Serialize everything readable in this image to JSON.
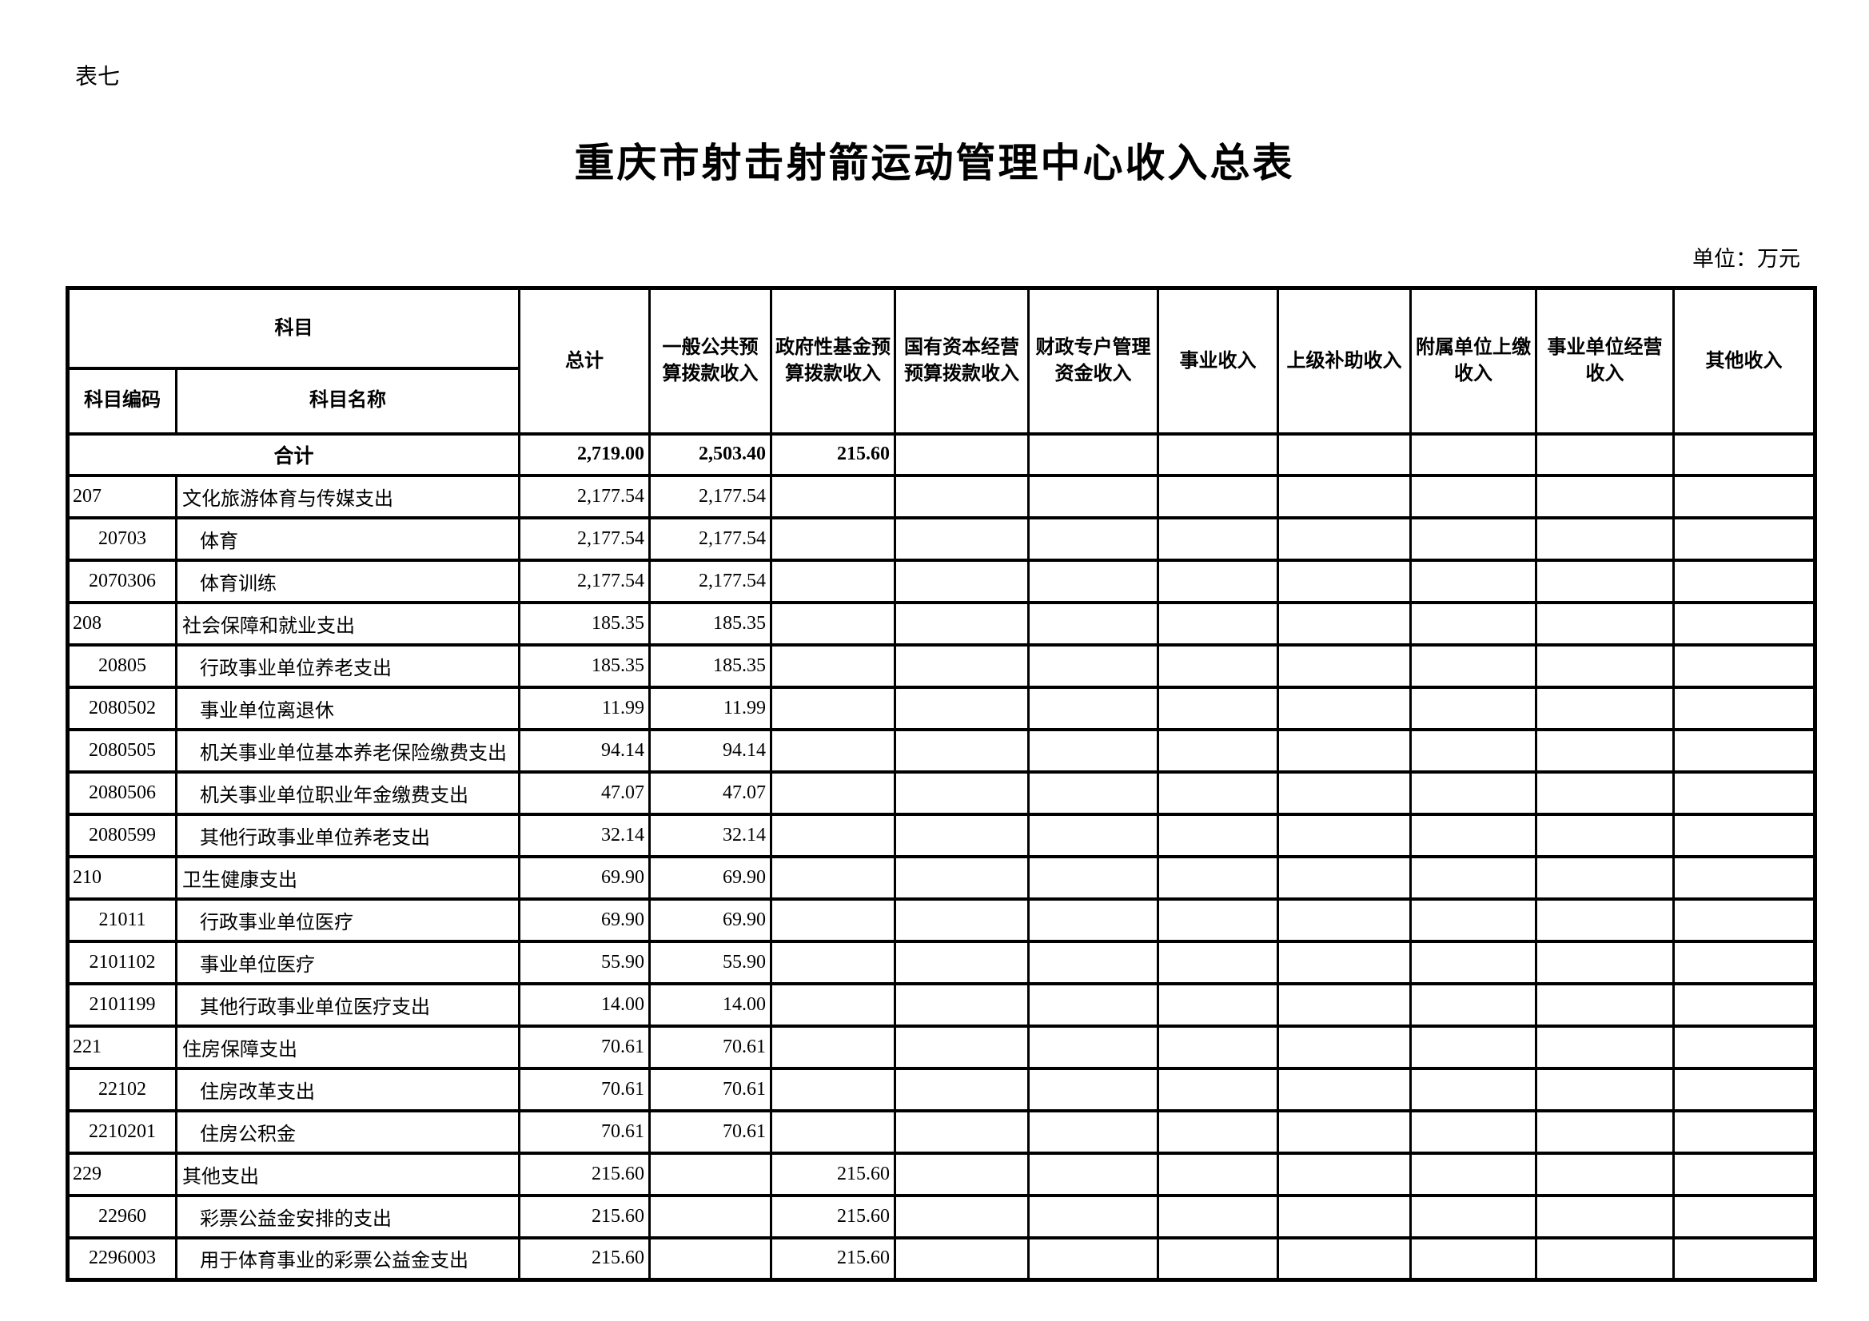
{
  "page": {
    "table_label": "表七",
    "title": "重庆市射击射箭运动管理中心收入总表",
    "unit_note": "单位：万元"
  },
  "table": {
    "header": {
      "subject_group": "科目",
      "subject_code": "科目编码",
      "subject_name": "科目名称",
      "columns": [
        "总计",
        "一般公共预\n算拨款收入",
        "政府性基金预\n算拨款收入",
        "国有资本经营\n预算拨款收入",
        "财政专户管理\n资金收入",
        "事业收入",
        "上级补助收入",
        "附属单位上缴\n收入",
        "事业单位经营\n收入",
        "其他收入"
      ]
    },
    "total_row": {
      "label": "合计",
      "values": [
        "2,719.00",
        "2,503.40",
        "215.60",
        "",
        "",
        "",
        "",
        "",
        "",
        ""
      ]
    },
    "rows": [
      {
        "code": "207",
        "name": "文化旅游体育与传媒支出",
        "level": 1,
        "values": [
          "2,177.54",
          "2,177.54",
          "",
          "",
          "",
          "",
          "",
          "",
          "",
          ""
        ]
      },
      {
        "code": "20703",
        "name": "体育",
        "level": 2,
        "values": [
          "2,177.54",
          "2,177.54",
          "",
          "",
          "",
          "",
          "",
          "",
          "",
          ""
        ]
      },
      {
        "code": "2070306",
        "name": "体育训练",
        "level": 3,
        "values": [
          "2,177.54",
          "2,177.54",
          "",
          "",
          "",
          "",
          "",
          "",
          "",
          ""
        ]
      },
      {
        "code": "208",
        "name": "社会保障和就业支出",
        "level": 1,
        "values": [
          "185.35",
          "185.35",
          "",
          "",
          "",
          "",
          "",
          "",
          "",
          ""
        ]
      },
      {
        "code": "20805",
        "name": "行政事业单位养老支出",
        "level": 2,
        "values": [
          "185.35",
          "185.35",
          "",
          "",
          "",
          "",
          "",
          "",
          "",
          ""
        ]
      },
      {
        "code": "2080502",
        "name": "事业单位离退休",
        "level": 3,
        "values": [
          "11.99",
          "11.99",
          "",
          "",
          "",
          "",
          "",
          "",
          "",
          ""
        ]
      },
      {
        "code": "2080505",
        "name": "机关事业单位基本养老保险缴费支出",
        "level": 3,
        "values": [
          "94.14",
          "94.14",
          "",
          "",
          "",
          "",
          "",
          "",
          "",
          ""
        ]
      },
      {
        "code": "2080506",
        "name": "机关事业单位职业年金缴费支出",
        "level": 3,
        "values": [
          "47.07",
          "47.07",
          "",
          "",
          "",
          "",
          "",
          "",
          "",
          ""
        ]
      },
      {
        "code": "2080599",
        "name": "其他行政事业单位养老支出",
        "level": 3,
        "values": [
          "32.14",
          "32.14",
          "",
          "",
          "",
          "",
          "",
          "",
          "",
          ""
        ]
      },
      {
        "code": "210",
        "name": "卫生健康支出",
        "level": 1,
        "values": [
          "69.90",
          "69.90",
          "",
          "",
          "",
          "",
          "",
          "",
          "",
          ""
        ]
      },
      {
        "code": "21011",
        "name": "行政事业单位医疗",
        "level": 2,
        "values": [
          "69.90",
          "69.90",
          "",
          "",
          "",
          "",
          "",
          "",
          "",
          ""
        ]
      },
      {
        "code": "2101102",
        "name": "事业单位医疗",
        "level": 3,
        "values": [
          "55.90",
          "55.90",
          "",
          "",
          "",
          "",
          "",
          "",
          "",
          ""
        ]
      },
      {
        "code": "2101199",
        "name": "其他行政事业单位医疗支出",
        "level": 3,
        "values": [
          "14.00",
          "14.00",
          "",
          "",
          "",
          "",
          "",
          "",
          "",
          ""
        ]
      },
      {
        "code": "221",
        "name": "住房保障支出",
        "level": 1,
        "values": [
          "70.61",
          "70.61",
          "",
          "",
          "",
          "",
          "",
          "",
          "",
          ""
        ]
      },
      {
        "code": "22102",
        "name": "住房改革支出",
        "level": 2,
        "values": [
          "70.61",
          "70.61",
          "",
          "",
          "",
          "",
          "",
          "",
          "",
          ""
        ]
      },
      {
        "code": "2210201",
        "name": "住房公积金",
        "level": 3,
        "values": [
          "70.61",
          "70.61",
          "",
          "",
          "",
          "",
          "",
          "",
          "",
          ""
        ]
      },
      {
        "code": "229",
        "name": "其他支出",
        "level": 1,
        "values": [
          "215.60",
          "",
          "215.60",
          "",
          "",
          "",
          "",
          "",
          "",
          ""
        ]
      },
      {
        "code": "22960",
        "name": "彩票公益金安排的支出",
        "level": 2,
        "values": [
          "215.60",
          "",
          "215.60",
          "",
          "",
          "",
          "",
          "",
          "",
          ""
        ]
      },
      {
        "code": "2296003",
        "name": "用于体育事业的彩票公益金支出",
        "level": 3,
        "values": [
          "215.60",
          "",
          "215.60",
          "",
          "",
          "",
          "",
          "",
          "",
          ""
        ]
      }
    ]
  }
}
